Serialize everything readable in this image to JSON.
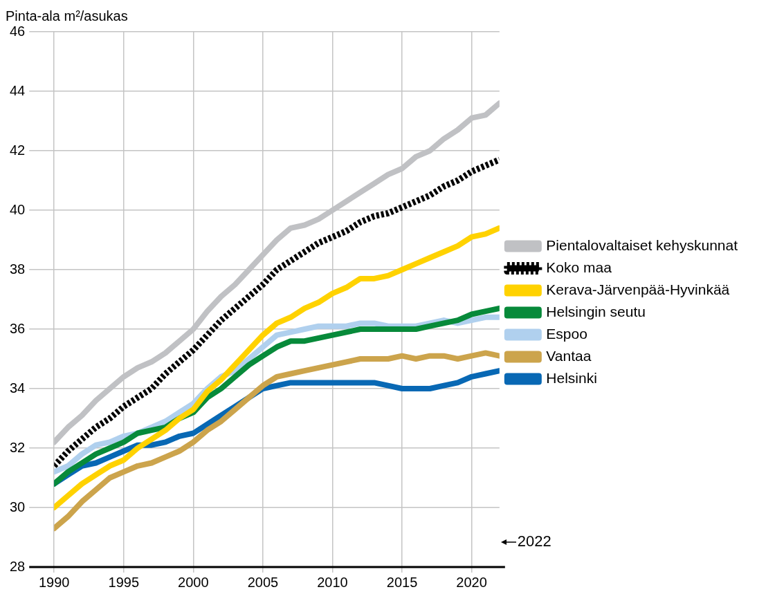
{
  "chart_data": {
    "type": "line",
    "ylabel": "Pinta-ala m²/asukas",
    "x": [
      1990,
      1991,
      1992,
      1993,
      1994,
      1995,
      1996,
      1997,
      1998,
      1999,
      2000,
      2001,
      2002,
      2003,
      2004,
      2005,
      2006,
      2007,
      2008,
      2009,
      2010,
      2011,
      2012,
      2013,
      2014,
      2015,
      2016,
      2017,
      2018,
      2019,
      2020,
      2021,
      2022
    ],
    "xlim": [
      1990,
      2022
    ],
    "xticks": [
      1990,
      1995,
      2000,
      2005,
      2010,
      2015,
      2020
    ],
    "ylim": [
      28,
      46
    ],
    "yticks": [
      28,
      30,
      32,
      34,
      36,
      38,
      40,
      42,
      44,
      46
    ],
    "grid": true,
    "legend": "right",
    "line_style": "solid",
    "marker": "none",
    "annotations": [
      "2022"
    ],
    "series": [
      {
        "name": "Pientalovaltaiset kehyskunnat",
        "color": "#c0c1c4",
        "values": [
          32.2,
          32.7,
          33.1,
          33.6,
          34.0,
          34.4,
          34.7,
          34.9,
          35.2,
          35.6,
          36.0,
          36.6,
          37.1,
          37.5,
          38.0,
          38.5,
          39.0,
          39.4,
          39.5,
          39.7,
          40.0,
          40.3,
          40.6,
          40.9,
          41.2,
          41.4,
          41.8,
          42.0,
          42.4,
          42.7,
          43.1,
          43.2,
          43.6
        ]
      },
      {
        "name": "Koko maa",
        "color": "#000000",
        "line_style": "dashed",
        "values": [
          31.4,
          31.9,
          32.3,
          32.7,
          33.0,
          33.4,
          33.7,
          34.0,
          34.5,
          34.9,
          35.3,
          35.8,
          36.3,
          36.7,
          37.1,
          37.5,
          38.0,
          38.3,
          38.6,
          38.9,
          39.1,
          39.3,
          39.6,
          39.8,
          39.9,
          40.1,
          40.3,
          40.5,
          40.8,
          41.0,
          41.3,
          41.5,
          41.7
        ]
      },
      {
        "name": "Kerava-Järvenpää-Hyvinkää",
        "color": "#ffd200",
        "values": [
          30.0,
          30.4,
          30.8,
          31.1,
          31.4,
          31.6,
          32.0,
          32.3,
          32.6,
          33.0,
          33.3,
          33.9,
          34.3,
          34.8,
          35.3,
          35.8,
          36.2,
          36.4,
          36.7,
          36.9,
          37.2,
          37.4,
          37.7,
          37.7,
          37.8,
          38.0,
          38.2,
          38.4,
          38.6,
          38.8,
          39.1,
          39.2,
          39.4
        ]
      },
      {
        "name": "Helsingin seutu",
        "color": "#078a3a",
        "values": [
          30.8,
          31.2,
          31.5,
          31.8,
          32.0,
          32.2,
          32.5,
          32.6,
          32.7,
          33.0,
          33.2,
          33.7,
          34.0,
          34.4,
          34.8,
          35.1,
          35.4,
          35.6,
          35.6,
          35.7,
          35.8,
          35.9,
          36.0,
          36.0,
          36.0,
          36.0,
          36.0,
          36.1,
          36.2,
          36.3,
          36.5,
          36.6,
          36.7
        ]
      },
      {
        "name": "Espoo",
        "color": "#b0d0ee",
        "values": [
          31.2,
          31.4,
          31.8,
          32.1,
          32.2,
          32.4,
          32.5,
          32.7,
          32.9,
          33.2,
          33.5,
          34.0,
          34.4,
          34.6,
          35.0,
          35.4,
          35.8,
          35.9,
          36.0,
          36.1,
          36.1,
          36.1,
          36.2,
          36.2,
          36.1,
          36.1,
          36.1,
          36.2,
          36.3,
          36.2,
          36.3,
          36.4,
          36.4
        ]
      },
      {
        "name": "Vantaa",
        "color": "#cca44c",
        "values": [
          29.3,
          29.7,
          30.2,
          30.6,
          31.0,
          31.2,
          31.4,
          31.5,
          31.7,
          31.9,
          32.2,
          32.6,
          32.9,
          33.3,
          33.7,
          34.1,
          34.4,
          34.5,
          34.6,
          34.7,
          34.8,
          34.9,
          35.0,
          35.0,
          35.0,
          35.1,
          35.0,
          35.1,
          35.1,
          35.0,
          35.1,
          35.2,
          35.1
        ]
      },
      {
        "name": "Helsinki",
        "color": "#0868b4",
        "values": [
          30.8,
          31.1,
          31.4,
          31.5,
          31.7,
          31.9,
          32.1,
          32.1,
          32.2,
          32.4,
          32.5,
          32.8,
          33.1,
          33.4,
          33.7,
          34.0,
          34.1,
          34.2,
          34.2,
          34.2,
          34.2,
          34.2,
          34.2,
          34.2,
          34.1,
          34.0,
          34.0,
          34.0,
          34.1,
          34.2,
          34.4,
          34.5,
          34.6
        ]
      }
    ]
  }
}
